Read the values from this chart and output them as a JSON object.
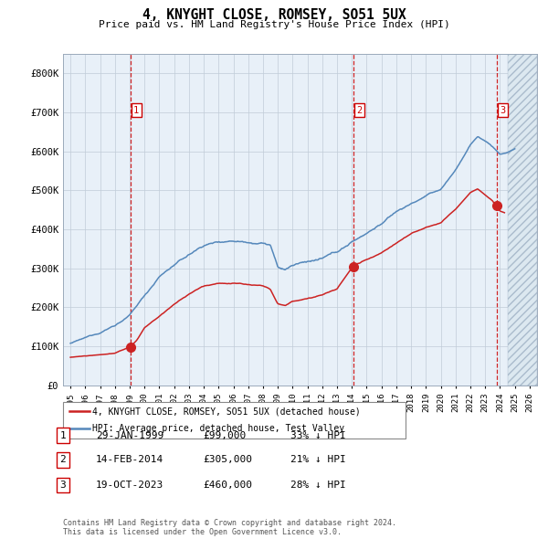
{
  "title": "4, KNYGHT CLOSE, ROMSEY, SO51 5UX",
  "subtitle": "Price paid vs. HM Land Registry's House Price Index (HPI)",
  "ylim": [
    0,
    850000
  ],
  "xlim_start": 1994.5,
  "xlim_end": 2026.5,
  "yticks": [
    0,
    100000,
    200000,
    300000,
    400000,
    500000,
    600000,
    700000,
    800000
  ],
  "ytick_labels": [
    "£0",
    "£100K",
    "£200K",
    "£300K",
    "£400K",
    "£500K",
    "£600K",
    "£700K",
    "£800K"
  ],
  "hpi_color": "#5588bb",
  "price_color": "#cc2222",
  "plot_bg": "#e8f0f8",
  "grid_color": "#c0ccd8",
  "sale_dates": [
    1999.08,
    2014.12,
    2023.8
  ],
  "sale_prices": [
    99000,
    305000,
    460000
  ],
  "sale_labels": [
    "1",
    "2",
    "3"
  ],
  "legend_line1": "4, KNYGHT CLOSE, ROMSEY, SO51 5UX (detached house)",
  "legend_line2": "HPI: Average price, detached house, Test Valley",
  "table_data": [
    [
      "1",
      "29-JAN-1999",
      "£99,000",
      "33% ↓ HPI"
    ],
    [
      "2",
      "14-FEB-2014",
      "£305,000",
      "21% ↓ HPI"
    ],
    [
      "3",
      "19-OCT-2023",
      "£460,000",
      "28% ↓ HPI"
    ]
  ],
  "footer": "Contains HM Land Registry data © Crown copyright and database right 2024.\nThis data is licensed under the Open Government Licence v3.0.",
  "vline_color": "#cc0000",
  "hatch_start": 2024.5,
  "xtick_years": [
    1995,
    1996,
    1997,
    1998,
    1999,
    2000,
    2001,
    2002,
    2003,
    2004,
    2005,
    2006,
    2007,
    2008,
    2009,
    2010,
    2011,
    2012,
    2013,
    2014,
    2015,
    2016,
    2017,
    2018,
    2019,
    2020,
    2021,
    2022,
    2023,
    2024,
    2025,
    2026
  ]
}
